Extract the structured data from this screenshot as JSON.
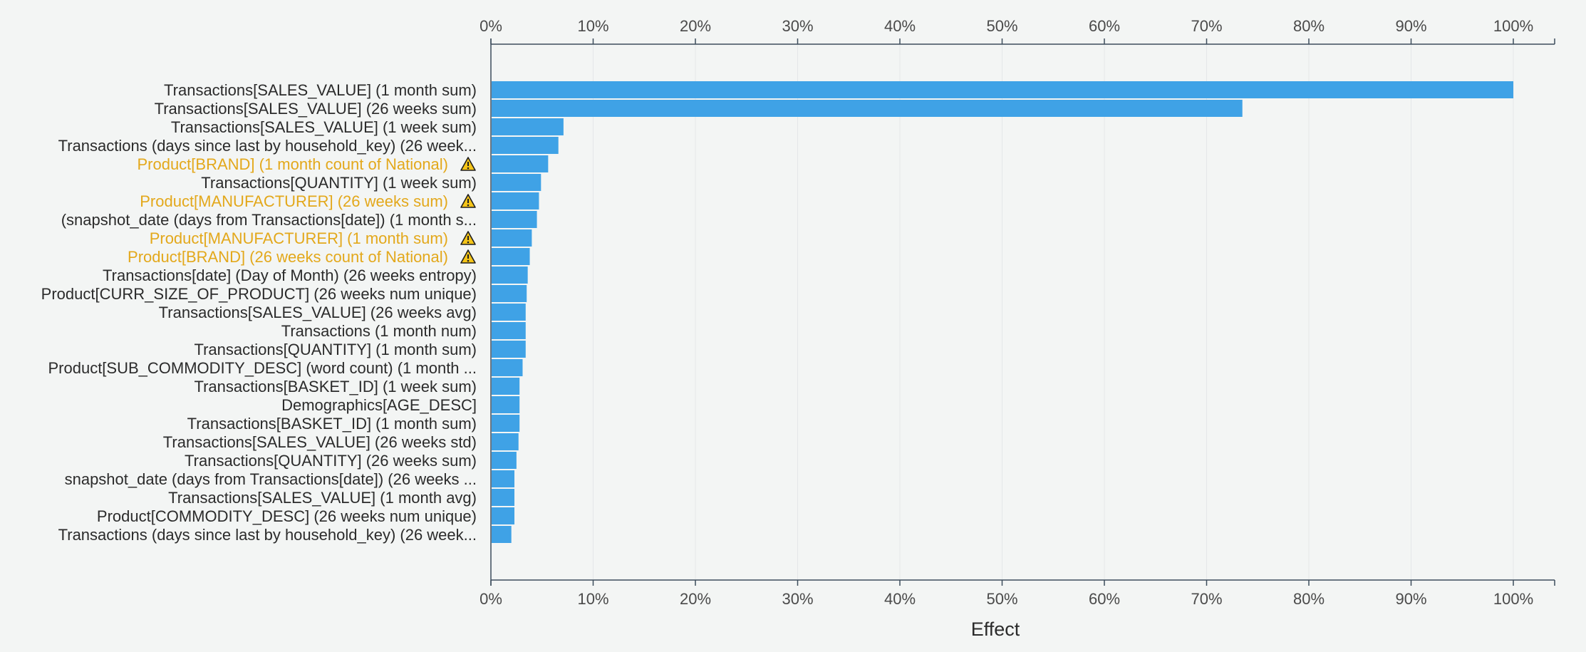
{
  "chart_data": {
    "type": "bar",
    "orientation": "horizontal",
    "xlabel": "Effect",
    "xlim": [
      0,
      100
    ],
    "x_unit": "%",
    "grid": true,
    "ticks": [
      "0%",
      "10%",
      "20%",
      "30%",
      "40%",
      "50%",
      "60%",
      "70%",
      "80%",
      "90%",
      "100%"
    ],
    "tick_values": [
      0,
      10,
      20,
      30,
      40,
      50,
      60,
      70,
      80,
      90,
      100
    ],
    "colors": {
      "bar": "#3fa2e6",
      "label": "#2b2b2b",
      "warning_label": "#e3a81b",
      "axis": "#3d4d5c",
      "grid": "#e4e7e9",
      "tick_text": "#4a4a4a"
    },
    "warning_icon": "warning-triangle-icon",
    "bars": [
      {
        "label": "Transactions[SALES_VALUE] (1 month sum)",
        "value": 100,
        "warning": false
      },
      {
        "label": "Transactions[SALES_VALUE] (26 weeks sum)",
        "value": 73.5,
        "warning": false
      },
      {
        "label": "Transactions[SALES_VALUE] (1 week sum)",
        "value": 7.1,
        "warning": false
      },
      {
        "label": "Transactions (days since last by household_key) (26 week...",
        "value": 6.6,
        "warning": false
      },
      {
        "label": "Product[BRAND] (1 month count of National)",
        "value": 5.6,
        "warning": true
      },
      {
        "label": "Transactions[QUANTITY] (1 week sum)",
        "value": 4.9,
        "warning": false
      },
      {
        "label": "Product[MANUFACTURER] (26 weeks sum)",
        "value": 4.7,
        "warning": true
      },
      {
        "label": "(snapshot_date (days from Transactions[date]) (1 month s...",
        "value": 4.5,
        "warning": false
      },
      {
        "label": "Product[MANUFACTURER] (1 month sum)",
        "value": 4.0,
        "warning": true
      },
      {
        "label": "Product[BRAND] (26 weeks count of National)",
        "value": 3.8,
        "warning": true
      },
      {
        "label": "Transactions[date] (Day of Month) (26 weeks entropy)",
        "value": 3.6,
        "warning": false
      },
      {
        "label": "Product[CURR_SIZE_OF_PRODUCT] (26 weeks num unique)",
        "value": 3.5,
        "warning": false
      },
      {
        "label": "Transactions[SALES_VALUE] (26 weeks avg)",
        "value": 3.4,
        "warning": false
      },
      {
        "label": "Transactions (1 month num)",
        "value": 3.4,
        "warning": false
      },
      {
        "label": "Transactions[QUANTITY] (1 month sum)",
        "value": 3.4,
        "warning": false
      },
      {
        "label": "Product[SUB_COMMODITY_DESC] (word count) (1 month ...",
        "value": 3.1,
        "warning": false
      },
      {
        "label": "Transactions[BASKET_ID] (1 week sum)",
        "value": 2.8,
        "warning": false
      },
      {
        "label": "Demographics[AGE_DESC]",
        "value": 2.8,
        "warning": false
      },
      {
        "label": "Transactions[BASKET_ID] (1 month sum)",
        "value": 2.8,
        "warning": false
      },
      {
        "label": "Transactions[SALES_VALUE] (26 weeks std)",
        "value": 2.7,
        "warning": false
      },
      {
        "label": "Transactions[QUANTITY] (26 weeks sum)",
        "value": 2.5,
        "warning": false
      },
      {
        "label": "snapshot_date (days from Transactions[date]) (26 weeks ...",
        "value": 2.3,
        "warning": false
      },
      {
        "label": "Transactions[SALES_VALUE] (1 month avg)",
        "value": 2.3,
        "warning": false
      },
      {
        "label": "Product[COMMODITY_DESC] (26 weeks num unique)",
        "value": 2.3,
        "warning": false
      },
      {
        "label": "Transactions (days since last by household_key) (26 week...",
        "value": 2.0,
        "warning": false
      }
    ]
  }
}
